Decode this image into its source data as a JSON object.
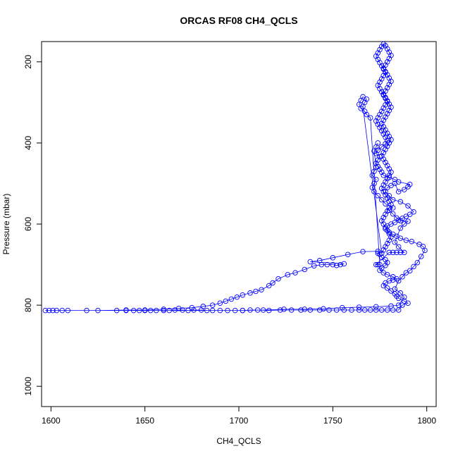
{
  "chart_data": {
    "type": "scatter",
    "title": "ORCAS RF08 CH4_QCLS",
    "xlabel": "CH4_QCLS",
    "ylabel": "Pressure (mbar)",
    "xlim": [
      1595,
      1805
    ],
    "ylim": [
      1050,
      150
    ],
    "y_reversed": true,
    "grid": false,
    "legend": "none",
    "x_ticks": [
      1600,
      1650,
      1700,
      1750,
      1800
    ],
    "y_ticks": [
      200,
      400,
      600,
      800,
      1000
    ],
    "series": [
      {
        "color": "#0000ff",
        "marker": "open-circle",
        "connected": true,
        "points": [
          [
            1597,
            813
          ],
          [
            1599,
            813
          ],
          [
            1601,
            813
          ],
          [
            1603,
            813
          ],
          [
            1606,
            813
          ],
          [
            1609,
            813
          ],
          [
            1619,
            813
          ],
          [
            1635,
            813
          ],
          [
            1640,
            813
          ],
          [
            1644,
            813
          ],
          [
            1647,
            813
          ],
          [
            1650,
            813
          ],
          [
            1653,
            813
          ],
          [
            1656,
            813
          ],
          [
            1660,
            813
          ],
          [
            1663,
            813
          ],
          [
            1666,
            812
          ],
          [
            1670,
            812
          ],
          [
            1673,
            813
          ],
          [
            1676,
            812
          ],
          [
            1680,
            812
          ],
          [
            1683,
            813
          ],
          [
            1686,
            813
          ],
          [
            1690,
            813
          ],
          [
            1694,
            813
          ],
          [
            1698,
            813
          ],
          [
            1702,
            813
          ],
          [
            1706,
            812
          ],
          [
            1710,
            812
          ],
          [
            1716,
            813
          ],
          [
            1722,
            812
          ],
          [
            1728,
            812
          ],
          [
            1733,
            812
          ],
          [
            1738,
            812
          ],
          [
            1743,
            812
          ],
          [
            1748,
            812
          ],
          [
            1752,
            812
          ],
          [
            1756,
            812
          ],
          [
            1760,
            812
          ],
          [
            1764,
            812
          ],
          [
            1767,
            812
          ],
          [
            1770,
            812
          ],
          [
            1773,
            812
          ],
          [
            1776,
            812
          ],
          [
            1779,
            812
          ],
          [
            1782,
            812
          ],
          [
            1785,
            812
          ],
          [
            1787,
            800
          ],
          [
            1790,
            795
          ],
          [
            1788,
            790
          ],
          [
            1785,
            783
          ],
          [
            1784,
            778
          ],
          [
            1783,
            772
          ],
          [
            1781,
            765
          ],
          [
            1779,
            758
          ],
          [
            1777,
            752
          ],
          [
            1778,
            745
          ],
          [
            1780,
            740
          ],
          [
            1782,
            738
          ],
          [
            1784,
            735
          ],
          [
            1782,
            730
          ],
          [
            1779,
            725
          ],
          [
            1777,
            720
          ],
          [
            1775,
            714
          ],
          [
            1776,
            708
          ],
          [
            1778,
            702
          ],
          [
            1779,
            695
          ],
          [
            1778,
            688
          ],
          [
            1776,
            682
          ],
          [
            1775,
            675
          ],
          [
            1774,
            672
          ],
          [
            1774,
            667
          ],
          [
            1766,
            668
          ],
          [
            1758,
            675
          ],
          [
            1750,
            683
          ],
          [
            1743,
            690
          ],
          [
            1738,
            693
          ],
          [
            1756,
            698
          ],
          [
            1754,
            700
          ],
          [
            1752,
            702
          ],
          [
            1750,
            700
          ],
          [
            1747,
            700
          ],
          [
            1744,
            700
          ],
          [
            1740,
            703
          ],
          [
            1735,
            712
          ],
          [
            1730,
            720
          ],
          [
            1726,
            725
          ],
          [
            1721,
            735
          ],
          [
            1718,
            745
          ],
          [
            1716,
            752
          ],
          [
            1712,
            762
          ],
          [
            1709,
            766
          ],
          [
            1706,
            770
          ],
          [
            1702,
            775
          ],
          [
            1699,
            780
          ],
          [
            1696,
            785
          ],
          [
            1693,
            790
          ],
          [
            1690,
            795
          ],
          [
            1686,
            800
          ],
          [
            1681,
            803
          ],
          [
            1675,
            806
          ],
          [
            1668,
            808
          ],
          [
            1660,
            810
          ],
          [
            1650,
            812
          ],
          [
            1640,
            812
          ],
          [
            1625,
            813
          ],
          [
            1702,
            813
          ],
          [
            1713,
            812
          ],
          [
            1724,
            810
          ],
          [
            1735,
            810
          ],
          [
            1745,
            809
          ],
          [
            1755,
            806
          ],
          [
            1764,
            805
          ],
          [
            1773,
            804
          ],
          [
            1781,
            802
          ],
          [
            1785,
            800
          ],
          [
            1788,
            780
          ],
          [
            1786,
            770
          ],
          [
            1783,
            760
          ],
          [
            1785,
            740
          ],
          [
            1787,
            730
          ],
          [
            1789,
            720
          ],
          [
            1791,
            715
          ],
          [
            1793,
            705
          ],
          [
            1795,
            695
          ],
          [
            1797,
            680
          ],
          [
            1799,
            665
          ],
          [
            1798,
            655
          ],
          [
            1796,
            650
          ],
          [
            1792,
            643
          ],
          [
            1789,
            640
          ],
          [
            1786,
            635
          ],
          [
            1784,
            630
          ],
          [
            1782,
            625
          ],
          [
            1780,
            620
          ],
          [
            1778,
            612
          ],
          [
            1779,
            605
          ],
          [
            1781,
            600
          ],
          [
            1783,
            596
          ],
          [
            1785,
            590
          ],
          [
            1787,
            586
          ],
          [
            1789,
            581
          ],
          [
            1791,
            576
          ],
          [
            1793,
            570
          ],
          [
            1790,
            555
          ],
          [
            1786,
            545
          ],
          [
            1782,
            540
          ],
          [
            1780,
            530
          ],
          [
            1778,
            520
          ],
          [
            1779,
            510
          ],
          [
            1781,
            505
          ],
          [
            1783,
            500
          ],
          [
            1785,
            520
          ],
          [
            1788,
            515
          ],
          [
            1790,
            508
          ],
          [
            1791,
            502
          ],
          [
            1785,
            496
          ],
          [
            1783,
            490
          ],
          [
            1780,
            485
          ],
          [
            1777,
            480
          ],
          [
            1776,
            472
          ],
          [
            1775,
            465
          ],
          [
            1774,
            458
          ],
          [
            1773,
            450
          ],
          [
            1774,
            442
          ],
          [
            1775,
            434
          ],
          [
            1773,
            426
          ],
          [
            1774,
            418
          ],
          [
            1776,
            410
          ],
          [
            1778,
            402
          ],
          [
            1779,
            394
          ],
          [
            1778,
            386
          ],
          [
            1777,
            378
          ],
          [
            1776,
            370
          ],
          [
            1775,
            362
          ],
          [
            1774,
            354
          ],
          [
            1773,
            346
          ],
          [
            1774,
            338
          ],
          [
            1775,
            330
          ],
          [
            1776,
            322
          ],
          [
            1777,
            314
          ],
          [
            1778,
            306
          ],
          [
            1779,
            298
          ],
          [
            1778,
            290
          ],
          [
            1777,
            282
          ],
          [
            1776,
            274
          ],
          [
            1775,
            266
          ],
          [
            1774,
            258
          ],
          [
            1775,
            250
          ],
          [
            1776,
            242
          ],
          [
            1777,
            234
          ],
          [
            1778,
            226
          ],
          [
            1777,
            218
          ],
          [
            1776,
            210
          ],
          [
            1775,
            202
          ],
          [
            1774,
            194
          ],
          [
            1773,
            186
          ],
          [
            1774,
            178
          ],
          [
            1775,
            170
          ],
          [
            1776,
            162
          ],
          [
            1777,
            156
          ],
          [
            1778,
            160
          ],
          [
            1779,
            168
          ],
          [
            1780,
            176
          ],
          [
            1781,
            184
          ],
          [
            1780,
            192
          ],
          [
            1779,
            200
          ],
          [
            1778,
            208
          ],
          [
            1777,
            216
          ],
          [
            1778,
            224
          ],
          [
            1779,
            232
          ],
          [
            1780,
            240
          ],
          [
            1781,
            248
          ],
          [
            1780,
            256
          ],
          [
            1779,
            264
          ],
          [
            1778,
            272
          ],
          [
            1777,
            280
          ],
          [
            1778,
            288
          ],
          [
            1779,
            296
          ],
          [
            1780,
            304
          ],
          [
            1781,
            312
          ],
          [
            1780,
            320
          ],
          [
            1779,
            328
          ],
          [
            1778,
            336
          ],
          [
            1777,
            344
          ],
          [
            1776,
            352
          ],
          [
            1777,
            360
          ],
          [
            1778,
            368
          ],
          [
            1779,
            376
          ],
          [
            1780,
            384
          ],
          [
            1781,
            392
          ],
          [
            1780,
            400
          ],
          [
            1779,
            408
          ],
          [
            1778,
            416
          ],
          [
            1777,
            424
          ],
          [
            1776,
            432
          ],
          [
            1777,
            440
          ],
          [
            1778,
            448
          ],
          [
            1779,
            456
          ],
          [
            1780,
            464
          ],
          [
            1781,
            472
          ],
          [
            1780,
            480
          ],
          [
            1779,
            488
          ],
          [
            1778,
            496
          ],
          [
            1777,
            504
          ],
          [
            1776,
            512
          ],
          [
            1777,
            520
          ],
          [
            1778,
            528
          ],
          [
            1779,
            536
          ],
          [
            1780,
            544
          ],
          [
            1781,
            552
          ],
          [
            1780,
            560
          ],
          [
            1779,
            568
          ],
          [
            1778,
            576
          ],
          [
            1777,
            584
          ],
          [
            1776,
            592
          ],
          [
            1777,
            600
          ],
          [
            1778,
            608
          ],
          [
            1779,
            616
          ],
          [
            1780,
            624
          ],
          [
            1781,
            632
          ],
          [
            1780,
            640
          ],
          [
            1779,
            648
          ],
          [
            1778,
            656
          ],
          [
            1777,
            664
          ],
          [
            1776,
            672
          ],
          [
            1766,
            310
          ],
          [
            1767,
            300
          ],
          [
            1768,
            292
          ],
          [
            1766,
            286
          ],
          [
            1765,
            295
          ],
          [
            1764,
            305
          ],
          [
            1765,
            315
          ],
          [
            1767,
            322
          ],
          [
            1768,
            330
          ],
          [
            1770,
            338
          ],
          [
            1775,
            700
          ],
          [
            1774,
            700
          ],
          [
            1773,
            700
          ],
          [
            1780,
            670
          ],
          [
            1782,
            670
          ],
          [
            1784,
            670
          ],
          [
            1786,
            670
          ],
          [
            1788,
            670
          ],
          [
            1785,
            656
          ],
          [
            1783,
            645
          ],
          [
            1786,
            610
          ],
          [
            1788,
            600
          ],
          [
            1790,
            593
          ],
          [
            1786,
            592
          ],
          [
            1784,
            585
          ],
          [
            1782,
            575
          ],
          [
            1780,
            566
          ],
          [
            1782,
            560
          ],
          [
            1778,
            550
          ],
          [
            1776,
            540
          ],
          [
            1774,
            530
          ],
          [
            1772,
            520
          ],
          [
            1771,
            510
          ],
          [
            1772,
            500
          ],
          [
            1773,
            490
          ],
          [
            1771,
            480
          ],
          [
            1772,
            470
          ],
          [
            1773,
            460
          ],
          [
            1772,
            420
          ],
          [
            1773,
            410
          ],
          [
            1774,
            400
          ]
        ]
      }
    ]
  }
}
